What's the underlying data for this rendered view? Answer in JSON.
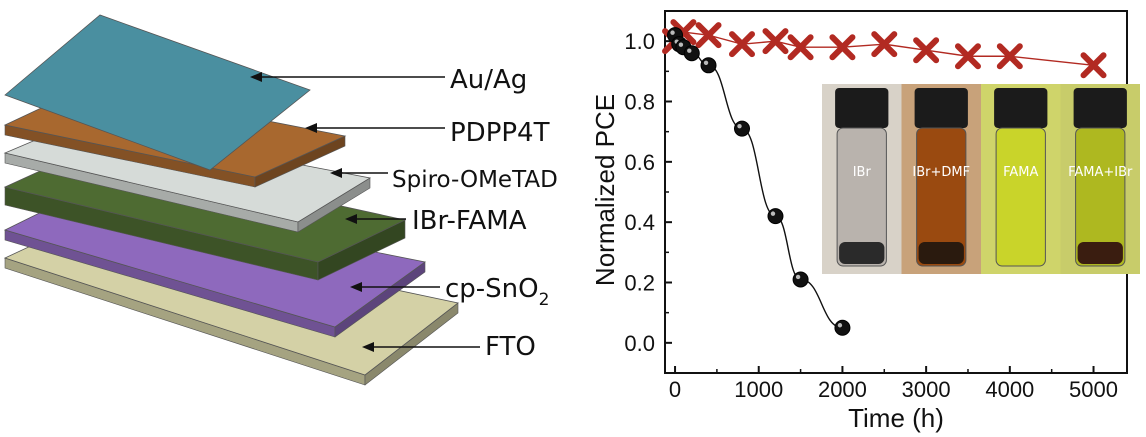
{
  "device_stack": {
    "layers": [
      {
        "label": "Au/Ag",
        "color": "#4a8fa0"
      },
      {
        "label": "PDPP4T",
        "color": "#a8682f"
      },
      {
        "label": "Spiro-OMeTAD",
        "color": "#d6dbd8"
      },
      {
        "label": "IBr-FAMA",
        "color": "#4e6b32"
      },
      {
        "label": "cp-SnO",
        "sub": "2",
        "color": "#8e69bd"
      },
      {
        "label": "FTO",
        "color": "#d4d1a6"
      }
    ]
  },
  "chart_data": {
    "type": "scatter",
    "xlabel": "Time (h)",
    "ylabel": "Normalized PCE",
    "xlim": [
      -120,
      5400
    ],
    "ylim": [
      -0.1,
      1.1
    ],
    "xticks": [
      0,
      1000,
      2000,
      3000,
      4000,
      5000
    ],
    "yticks": [
      "0.0",
      "0.2",
      "0.4",
      "0.6",
      "0.8",
      "1.0"
    ],
    "series": [
      {
        "marker": "cross",
        "color": "#b22a22",
        "x": [
          0,
          100,
          400,
          800,
          1200,
          1500,
          2000,
          2500,
          3000,
          3500,
          4000,
          5000
        ],
        "y": [
          1.0,
          1.03,
          1.02,
          0.99,
          1.0,
          0.98,
          0.98,
          0.99,
          0.97,
          0.95,
          0.95,
          0.92
        ]
      },
      {
        "marker": "circle",
        "color": "#111111",
        "x": [
          0,
          50,
          100,
          200,
          400,
          800,
          1200,
          1500,
          2000
        ],
        "y": [
          1.02,
          0.99,
          0.98,
          0.96,
          0.92,
          0.71,
          0.42,
          0.21,
          0.05
        ]
      }
    ],
    "inset_photo": {
      "vials": [
        {
          "label": "IBr",
          "liquid": "#b9b3ad"
        },
        {
          "label": "IBr+DMF",
          "liquid": "#9a4a10"
        },
        {
          "label": "FAMA",
          "liquid": "#c9d42a"
        },
        {
          "label": "FAMA+IBr",
          "liquid": "#aeb820"
        }
      ]
    }
  }
}
